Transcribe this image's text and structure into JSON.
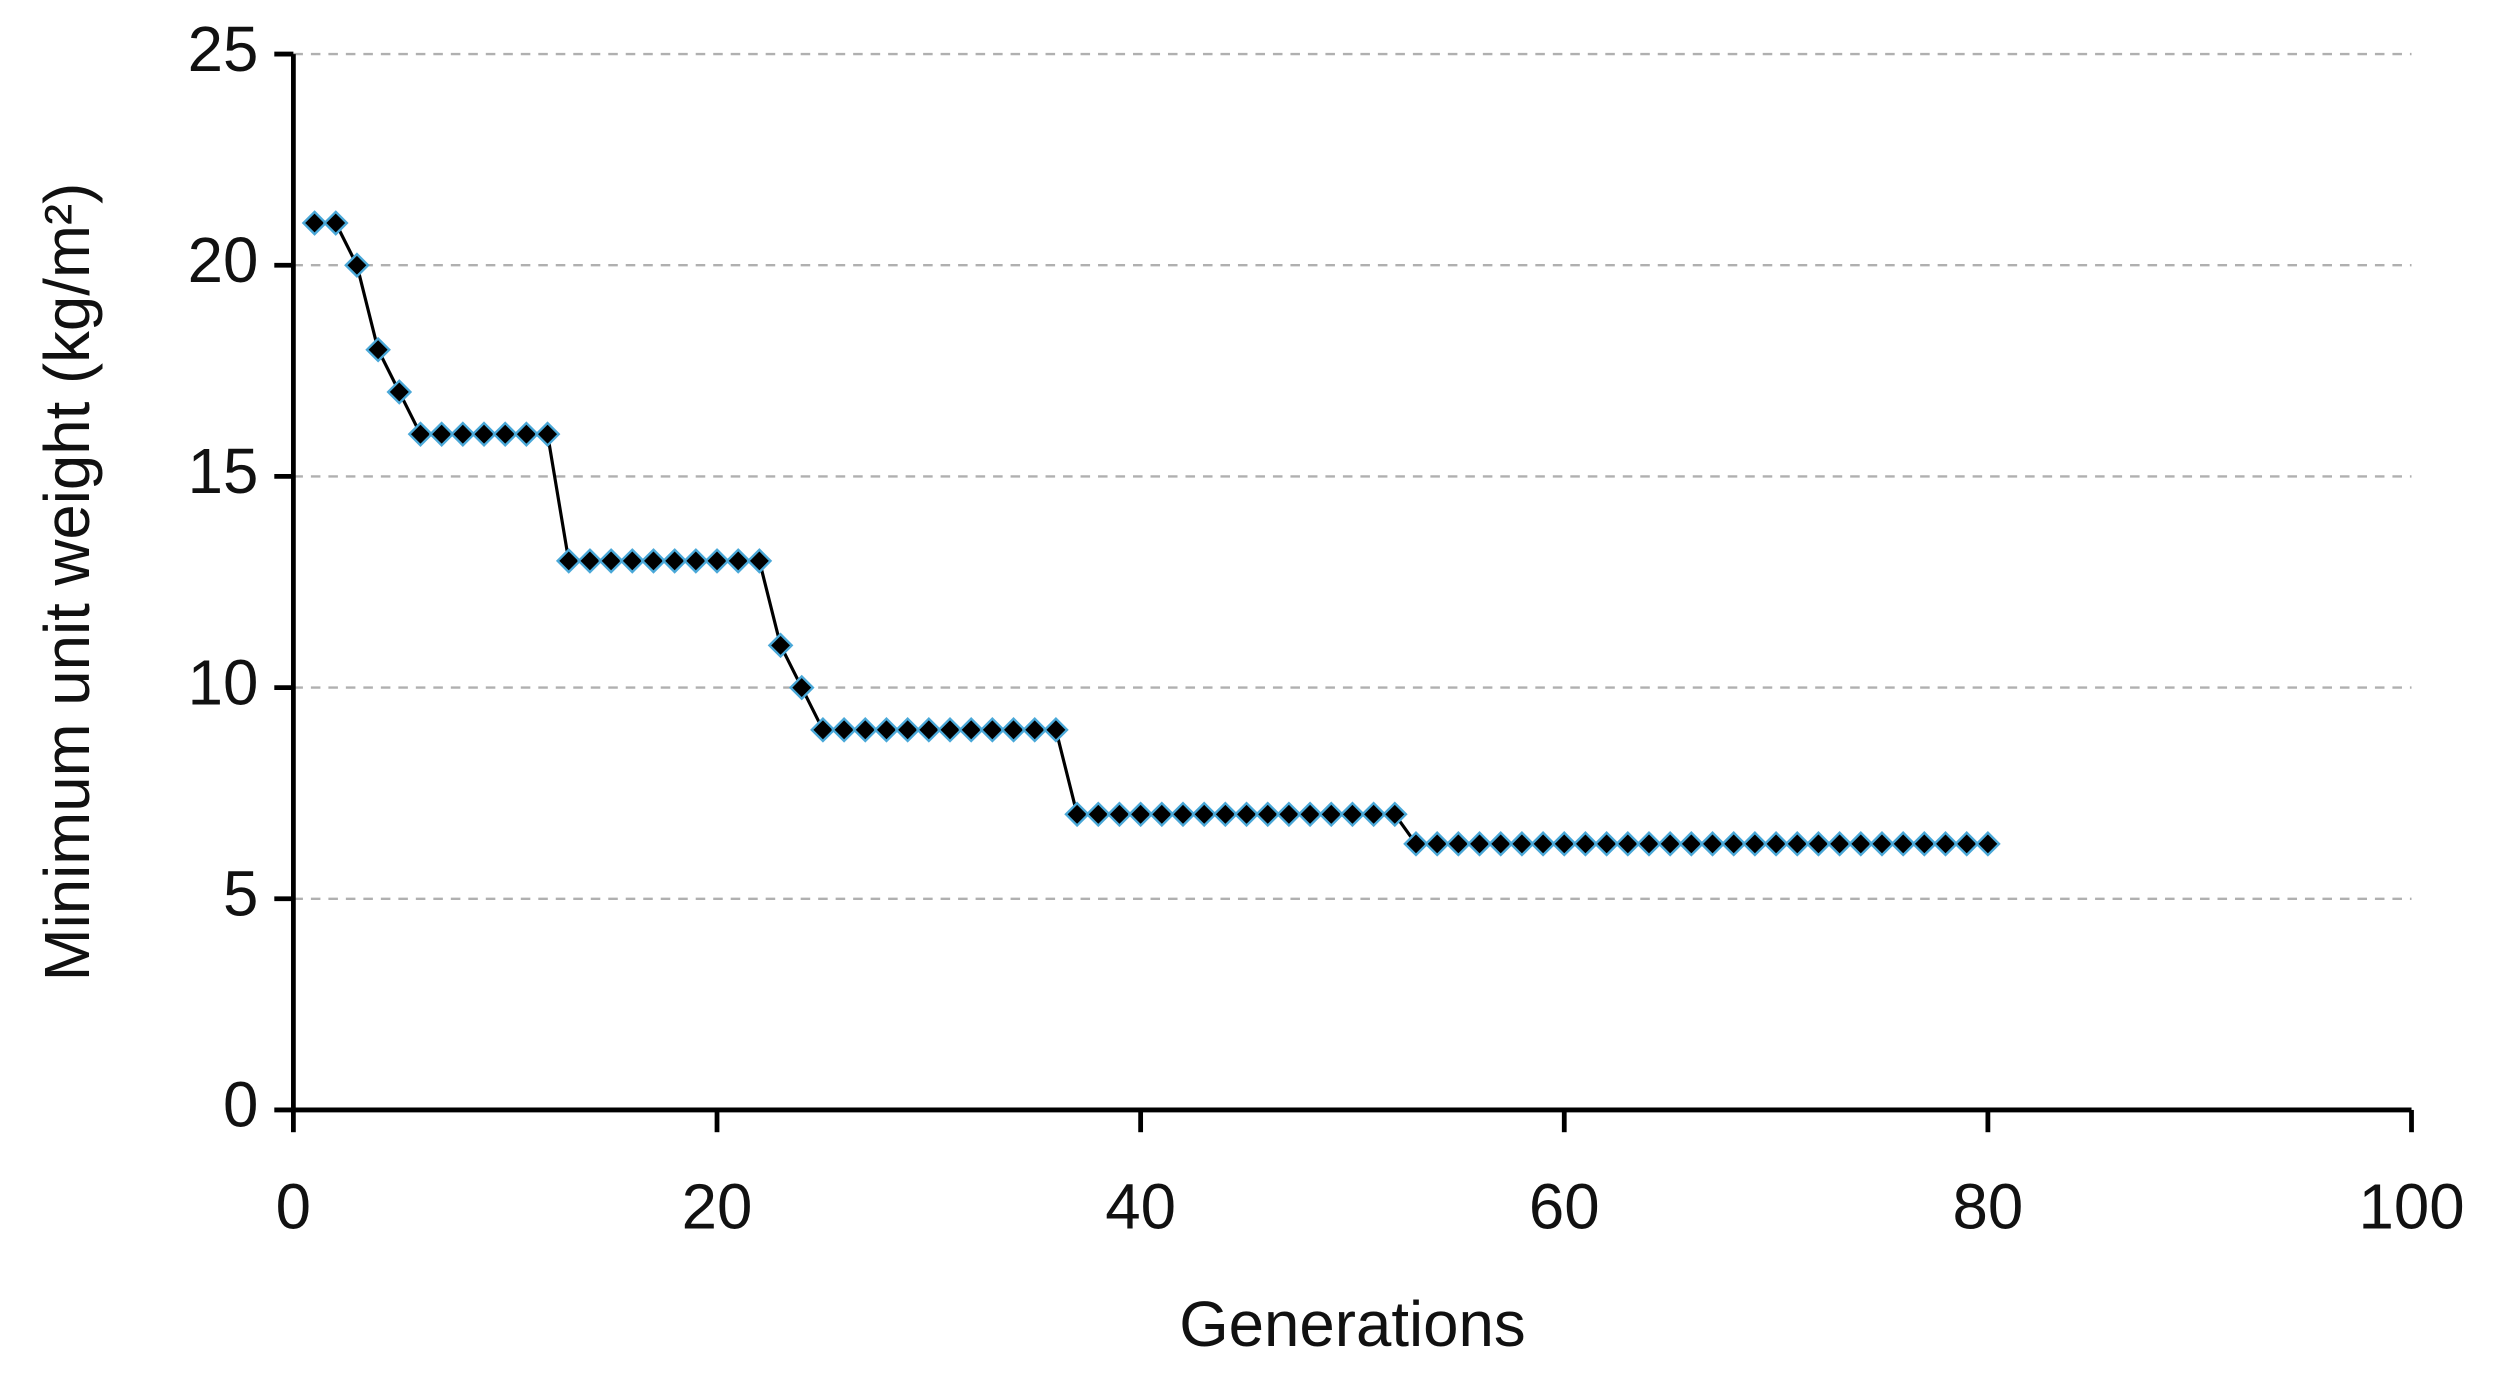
{
  "chart_data": {
    "type": "line",
    "x_label": "Generations",
    "y_label": "Minimum unit weight (kg/m²)",
    "x": [
      1,
      2,
      3,
      4,
      5,
      6,
      7,
      8,
      9,
      10,
      11,
      12,
      13,
      14,
      15,
      16,
      17,
      18,
      19,
      20,
      21,
      22,
      23,
      24,
      25,
      26,
      27,
      28,
      29,
      30,
      31,
      32,
      33,
      34,
      35,
      36,
      37,
      38,
      39,
      40,
      41,
      42,
      43,
      44,
      45,
      46,
      47,
      48,
      49,
      50,
      51,
      52,
      53,
      54,
      55,
      56,
      57,
      58,
      59,
      60,
      61,
      62,
      63,
      64,
      65,
      66,
      67,
      68,
      69,
      70,
      71,
      72,
      73,
      74,
      75,
      76,
      77,
      78,
      79,
      80
    ],
    "values": [
      21,
      21,
      20,
      18,
      17,
      16,
      16,
      16,
      16,
      16,
      16,
      16,
      13,
      13,
      13,
      13,
      13,
      13,
      13,
      13,
      13,
      13,
      11,
      10,
      9,
      9,
      9,
      9,
      9,
      9,
      9,
      9,
      9,
      9,
      9,
      9,
      7,
      7,
      7,
      7,
      7,
      7,
      7,
      7,
      7,
      7,
      7,
      7,
      7,
      7,
      7,
      7,
      6.3,
      6.3,
      6.3,
      6.3,
      6.3,
      6.3,
      6.3,
      6.3,
      6.3,
      6.3,
      6.3,
      6.3,
      6.3,
      6.3,
      6.3,
      6.3,
      6.3,
      6.3,
      6.3,
      6.3,
      6.3,
      6.3,
      6.3,
      6.3,
      6.3,
      6.3,
      6.3,
      6.3
    ],
    "line_color": "#000000",
    "marker_color": "#000000",
    "marker_edge_color": "#4aa8d8",
    "xlim": [
      0,
      100
    ],
    "xticks": [
      0,
      20,
      40,
      60,
      80,
      100
    ],
    "ylim": [
      0,
      25
    ],
    "yticks": [
      0,
      5,
      10,
      15,
      20,
      25
    ],
    "grid": true
  }
}
